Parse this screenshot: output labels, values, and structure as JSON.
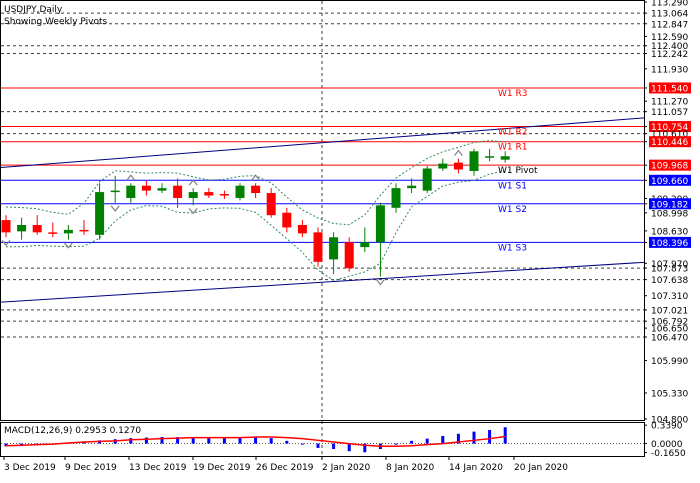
{
  "chart_data": {
    "type": "candlestick",
    "title": "USDJPY,Daily",
    "subtitle": "Showing Weekly Pivots",
    "ylim": [
      104.8,
      113.29
    ],
    "price_ticks": [
      "113.290",
      "113.064",
      "112.847",
      "112.590",
      "112.400",
      "112.242",
      "111.930",
      "111.540",
      "111.270",
      "111.057",
      "110.754",
      "110.610",
      "110.446",
      "109.968",
      "109.660",
      "109.290",
      "109.182",
      "108.998",
      "108.630",
      "108.396",
      "107.970",
      "107.873",
      "107.638",
      "107.310",
      "107.021",
      "106.792",
      "106.650",
      "106.470",
      "105.990",
      "105.330",
      "104.800"
    ],
    "highlight_ticks": [
      {
        "label": "111.540",
        "color": "#ff0000"
      },
      {
        "label": "110.754",
        "color": "#ff0000"
      },
      {
        "label": "110.446",
        "color": "#ff0000"
      },
      {
        "label": "109.968",
        "color": "#ff0000"
      },
      {
        "label": "109.660",
        "color": "#0000ff"
      },
      {
        "label": "109.182",
        "color": "#0000ff"
      },
      {
        "label": "108.396",
        "color": "#0000ff"
      }
    ],
    "pivot_labels": [
      {
        "text": "W1 R3",
        "color": "#ff0000"
      },
      {
        "text": "W1 R2",
        "color": "#ff0000"
      },
      {
        "text": "W1 R1",
        "color": "#ff0000"
      },
      {
        "text": "W1 Pivot",
        "color": "#000000"
      },
      {
        "text": "W1 S1",
        "color": "#0000ff"
      },
      {
        "text": "W1 S2",
        "color": "#0000ff"
      },
      {
        "text": "W1 S3",
        "color": "#0000ff"
      }
    ],
    "x_labels": [
      "3 Dec 2019",
      "9 Dec 2019",
      "13 Dec 2019",
      "19 Dec 2019",
      "26 Dec 2019",
      "2 Jan 2020",
      "8 Jan 2020",
      "14 Jan 2020",
      "20 Jan 2020"
    ],
    "candles": [
      {
        "o": 108.85,
        "h": 108.95,
        "l": 108.5,
        "c": 108.6
      },
      {
        "o": 108.62,
        "h": 108.9,
        "l": 108.45,
        "c": 108.75
      },
      {
        "o": 108.75,
        "h": 108.95,
        "l": 108.55,
        "c": 108.6
      },
      {
        "o": 108.6,
        "h": 108.8,
        "l": 108.5,
        "c": 108.58
      },
      {
        "o": 108.58,
        "h": 108.75,
        "l": 108.45,
        "c": 108.65
      },
      {
        "o": 108.65,
        "h": 108.85,
        "l": 108.55,
        "c": 108.62
      },
      {
        "o": 108.55,
        "h": 109.6,
        "l": 108.45,
        "c": 109.42
      },
      {
        "o": 109.42,
        "h": 109.75,
        "l": 109.2,
        "c": 109.45
      },
      {
        "o": 109.3,
        "h": 109.6,
        "l": 109.2,
        "c": 109.55
      },
      {
        "o": 109.55,
        "h": 109.65,
        "l": 109.35,
        "c": 109.45
      },
      {
        "o": 109.45,
        "h": 109.6,
        "l": 109.4,
        "c": 109.5
      },
      {
        "o": 109.55,
        "h": 109.7,
        "l": 109.1,
        "c": 109.3
      },
      {
        "o": 109.3,
        "h": 109.5,
        "l": 109.15,
        "c": 109.42
      },
      {
        "o": 109.42,
        "h": 109.5,
        "l": 109.3,
        "c": 109.35
      },
      {
        "o": 109.38,
        "h": 109.45,
        "l": 109.28,
        "c": 109.35
      },
      {
        "o": 109.3,
        "h": 109.6,
        "l": 109.25,
        "c": 109.55
      },
      {
        "o": 109.55,
        "h": 109.6,
        "l": 109.3,
        "c": 109.4
      },
      {
        "o": 109.4,
        "h": 109.5,
        "l": 108.9,
        "c": 108.95
      },
      {
        "o": 109.0,
        "h": 109.1,
        "l": 108.6,
        "c": 108.7
      },
      {
        "o": 108.75,
        "h": 108.85,
        "l": 108.5,
        "c": 108.58
      },
      {
        "o": 108.6,
        "h": 108.7,
        "l": 107.9,
        "c": 108.0
      },
      {
        "o": 108.05,
        "h": 108.6,
        "l": 107.75,
        "c": 108.5
      },
      {
        "o": 108.4,
        "h": 108.5,
        "l": 107.8,
        "c": 107.87
      },
      {
        "o": 108.3,
        "h": 108.7,
        "l": 108.2,
        "c": 108.4
      },
      {
        "o": 108.4,
        "h": 109.2,
        "l": 107.7,
        "c": 109.15
      },
      {
        "o": 109.1,
        "h": 109.6,
        "l": 109.0,
        "c": 109.5
      },
      {
        "o": 109.5,
        "h": 109.7,
        "l": 109.4,
        "c": 109.55
      },
      {
        "o": 109.45,
        "h": 109.95,
        "l": 109.4,
        "c": 109.9
      },
      {
        "o": 109.9,
        "h": 110.1,
        "l": 109.85,
        "c": 110.0
      },
      {
        "o": 110.02,
        "h": 110.1,
        "l": 109.8,
        "c": 109.88
      },
      {
        "o": 109.85,
        "h": 110.3,
        "l": 109.75,
        "c": 110.25
      },
      {
        "o": 110.15,
        "h": 110.3,
        "l": 110.05,
        "c": 110.15
      },
      {
        "o": 110.08,
        "h": 110.25,
        "l": 110.02,
        "c": 110.15
      }
    ],
    "macd": {
      "label": "MACD(12,26,9) 0.2953 0.1270",
      "ylim": [
        -0.21,
        0.36
      ],
      "ticks": [
        "0.3390",
        "0.0000",
        "-0.1650"
      ],
      "histogram": [
        -0.05,
        -0.04,
        -0.03,
        -0.02,
        0.02,
        0.04,
        0.06,
        0.08,
        0.1,
        0.11,
        0.12,
        0.12,
        0.12,
        0.11,
        0.1,
        0.11,
        0.12,
        0.1,
        0.05,
        -0.02,
        -0.08,
        -0.1,
        -0.14,
        -0.16,
        -0.1,
        -0.02,
        0.05,
        0.09,
        0.14,
        0.18,
        0.22,
        0.25,
        0.3
      ],
      "signal": [
        -0.04,
        -0.03,
        -0.02,
        -0.01,
        0.01,
        0.03,
        0.04,
        0.05,
        0.07,
        0.08,
        0.09,
        0.1,
        0.11,
        0.11,
        0.11,
        0.11,
        0.12,
        0.12,
        0.11,
        0.09,
        0.06,
        0.03,
        0.0,
        -0.03,
        -0.05,
        -0.05,
        -0.04,
        -0.02,
        0.0,
        0.03,
        0.06,
        0.09,
        0.13
      ]
    }
  }
}
